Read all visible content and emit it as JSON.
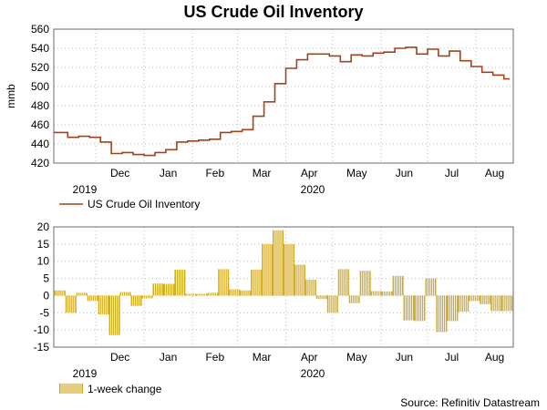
{
  "title": "US Crude Oil Inventory",
  "source": "Source: Refinitiv Datastream",
  "colors": {
    "line": "#a0441c",
    "bar": "#d4ac24",
    "barStroke": "#9f7f12"
  },
  "chart_data": [
    {
      "type": "line",
      "ylabel": "mmb",
      "ylim": [
        420,
        560
      ],
      "y_ticks": [
        420,
        440,
        460,
        480,
        500,
        520,
        540,
        560
      ],
      "x_month_labels": [
        "Dec",
        "Jan",
        "Feb",
        "Mar",
        "Apr",
        "May",
        "Jun",
        "Jul",
        "Aug"
      ],
      "x_year_labels": [
        "2019",
        "2020"
      ],
      "grid": true,
      "legend": "below",
      "series": [
        {
          "name": "US Crude Oil Inventory",
          "x": [
            "2019-11-08",
            "2019-11-15",
            "2019-11-22",
            "2019-11-29",
            "2019-12-06",
            "2019-12-13",
            "2019-12-20",
            "2019-12-27",
            "2020-01-03",
            "2020-01-10",
            "2020-01-17",
            "2020-01-24",
            "2020-01-31",
            "2020-02-07",
            "2020-02-14",
            "2020-02-21",
            "2020-02-28",
            "2020-03-06",
            "2020-03-13",
            "2020-03-20",
            "2020-03-27",
            "2020-04-03",
            "2020-04-10",
            "2020-04-17",
            "2020-04-24",
            "2020-05-01",
            "2020-05-08",
            "2020-05-15",
            "2020-05-22",
            "2020-05-29",
            "2020-06-05",
            "2020-06-12",
            "2020-06-19",
            "2020-06-26",
            "2020-07-03",
            "2020-07-10",
            "2020-07-17",
            "2020-07-24",
            "2020-07-31",
            "2020-08-07",
            "2020-08-14",
            "2020-08-21"
          ],
          "values": [
            452,
            447,
            448,
            447,
            442,
            430,
            431,
            429,
            428,
            431,
            434,
            442,
            443,
            444,
            445,
            452,
            453,
            455,
            469,
            484,
            503,
            519,
            528,
            534,
            534,
            532,
            526,
            533,
            532,
            535,
            536,
            540,
            541,
            534,
            539,
            532,
            537,
            527,
            521,
            515,
            512,
            508
          ]
        }
      ]
    },
    {
      "type": "bar",
      "ylim": [
        -15,
        20
      ],
      "y_ticks": [
        -15,
        -10,
        -5,
        0,
        5,
        10,
        15,
        20
      ],
      "x_month_labels": [
        "Dec",
        "Jan",
        "Feb",
        "Mar",
        "Apr",
        "May",
        "Jun",
        "Jul",
        "Aug"
      ],
      "x_year_labels": [
        "2019",
        "2020"
      ],
      "grid": true,
      "legend": "below",
      "series": [
        {
          "name": "1-week change",
          "x": [
            "2019-11-08",
            "2019-11-15",
            "2019-11-22",
            "2019-11-29",
            "2019-12-06",
            "2019-12-13",
            "2019-12-20",
            "2019-12-27",
            "2020-01-03",
            "2020-01-10",
            "2020-01-17",
            "2020-01-24",
            "2020-01-31",
            "2020-02-07",
            "2020-02-14",
            "2020-02-21",
            "2020-02-28",
            "2020-03-06",
            "2020-03-13",
            "2020-03-20",
            "2020-03-27",
            "2020-04-03",
            "2020-04-10",
            "2020-04-17",
            "2020-04-24",
            "2020-05-01",
            "2020-05-08",
            "2020-05-15",
            "2020-05-22",
            "2020-05-29",
            "2020-06-05",
            "2020-06-12",
            "2020-06-19",
            "2020-06-26",
            "2020-07-03",
            "2020-07-10",
            "2020-07-17",
            "2020-07-24",
            "2020-07-31",
            "2020-08-07",
            "2020-08-14",
            "2020-08-21"
          ],
          "values": [
            1.5,
            -5.0,
            0.8,
            -1.6,
            -5.5,
            -11.5,
            1.0,
            -3.0,
            -0.8,
            3.5,
            3.4,
            7.5,
            0.5,
            0.5,
            0.8,
            7.7,
            1.8,
            1.5,
            7.5,
            15.0,
            19.0,
            15.0,
            9.0,
            4.6,
            -1.0,
            -5.0,
            7.7,
            -2.2,
            7.2,
            1.3,
            1.2,
            5.7,
            -7.2,
            -7.4,
            5.0,
            -10.6,
            -7.4,
            -4.7,
            -1.6,
            -2.5,
            -4.5,
            -4.5
          ]
        }
      ]
    }
  ]
}
